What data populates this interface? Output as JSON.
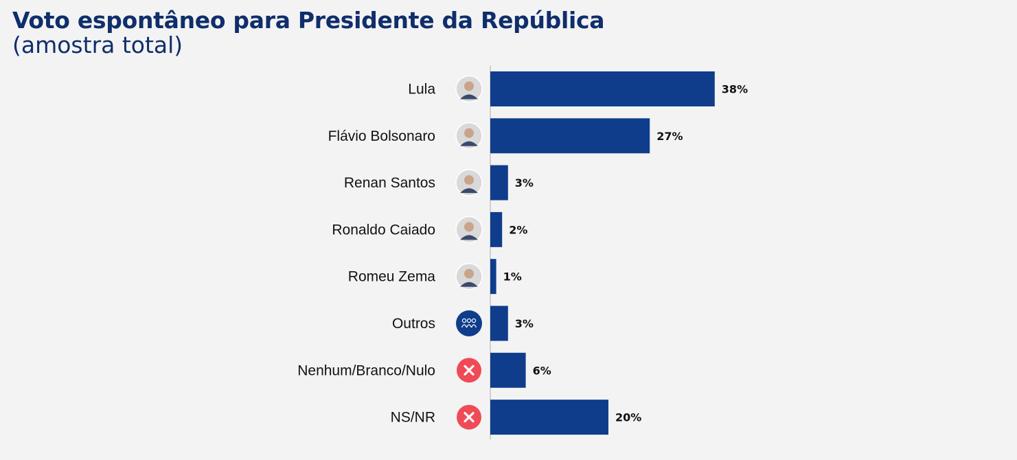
{
  "header": {
    "title": "Voto espontâneo para Presidente da República",
    "subtitle": "(amostra total)"
  },
  "colors": {
    "bar": "#0f3d8c",
    "axis": "#b8b8b8",
    "label": "#111111",
    "icon_group": "#0f3d8c",
    "icon_x": "#ef4b57"
  },
  "chart_data": {
    "type": "bar",
    "orientation": "horizontal",
    "categories": [
      "Lula",
      "Flávio Bolsonaro",
      "Renan Santos",
      "Ronaldo Caiado",
      "Romeu Zema",
      "Outros",
      "Nenhum/Branco/Nulo",
      "NS/NR"
    ],
    "values": [
      38,
      27,
      3,
      2,
      1,
      3,
      6,
      20
    ],
    "value_labels": [
      "38%",
      "27%",
      "3%",
      "2%",
      "1%",
      "3%",
      "6%",
      "20%"
    ],
    "icons": [
      "avatar-photo",
      "avatar-photo",
      "avatar-photo",
      "avatar-photo",
      "avatar-photo",
      "group-icon",
      "x-circle-icon",
      "x-circle-icon"
    ],
    "xlim": [
      0,
      100
    ],
    "grid": false,
    "legend": "none"
  }
}
